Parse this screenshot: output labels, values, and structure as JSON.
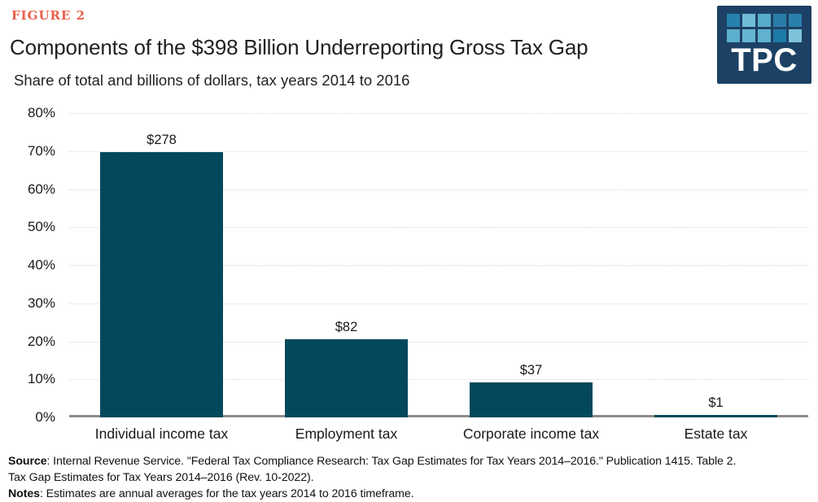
{
  "figure_label": "FIGURE 2",
  "header": {
    "figure_label_color": "#e8604c"
  },
  "chart_data": {
    "type": "bar",
    "title": "Components of the $398 Billion Underreporting Gross Tax Gap",
    "subtitle": "Share of total and billions of dollars, tax years 2014 to 2016",
    "categories": [
      "Individual income tax",
      "Employment tax",
      "Corporate income tax",
      "Estate tax"
    ],
    "values_share_pct": [
      69.8,
      20.6,
      9.3,
      0.3
    ],
    "amounts_billions": [
      278,
      82,
      37,
      1
    ],
    "value_labels": [
      "$278",
      "$82",
      "$37",
      "$1"
    ],
    "total_billions": 398,
    "xlabel": "",
    "ylabel": "",
    "ylim": [
      0,
      80
    ],
    "yticks": [
      0,
      10,
      20,
      30,
      40,
      50,
      60,
      70,
      80
    ],
    "ytick_suffix": "%",
    "grid": "horizontal-dotted",
    "legend": "none",
    "bar_color": "#03485c",
    "gridline_color": "#d9d9d9",
    "baseline_color": "#8c8c8c"
  },
  "logo": {
    "text": "TPC",
    "background": "#1d4164",
    "squares": [
      [
        "#2581ae",
        "#6fbcd7",
        "#57acc9",
        "#2a7da9",
        "#2a80ac"
      ],
      [
        "#5cb0cd",
        "#66b6d2",
        "#60b2cf",
        "#1e7aa8",
        "#7fc3db"
      ]
    ]
  },
  "footer": {
    "source_label": "Source",
    "source_line1_rest": ": Internal Revenue Service. \"Federal Tax Compliance Research: Tax Gap Estimates for Tax Years 2014–2016.\" Publication 1415. Table 2.",
    "source_line2": "Tax Gap Estimates for Tax Years 2014–2016 (Rev. 10-2022).",
    "notes_label": "Notes",
    "notes_rest": ": Estimates are annual averages for the tax years 2014 to 2016 timeframe."
  }
}
